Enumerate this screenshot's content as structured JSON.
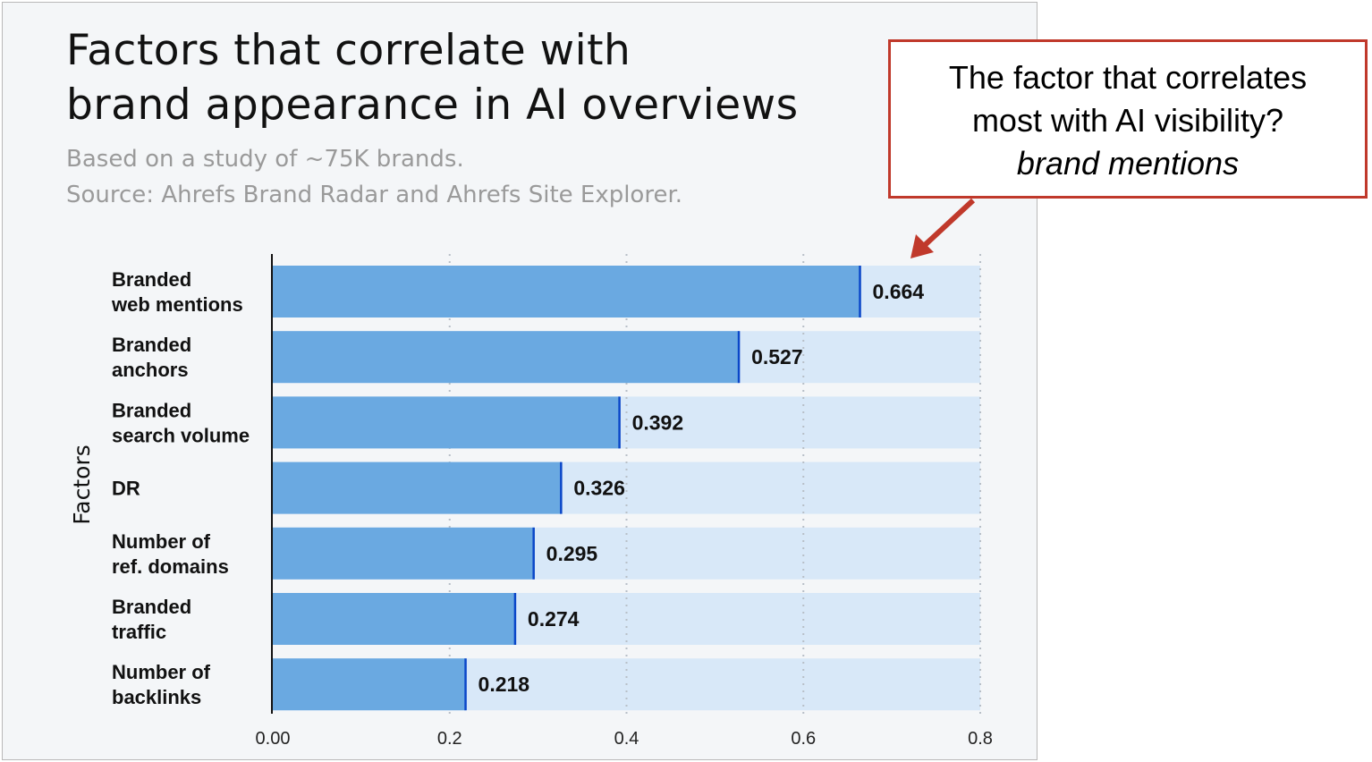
{
  "header": {
    "title_line1": "Factors that correlate with",
    "title_line2": "brand appearance in AI overviews",
    "subtitle_line1": "Based on a study of ~75K brands.",
    "subtitle_line2": "Source: Ahrefs Brand Radar and Ahrefs Site Explorer."
  },
  "callout": {
    "line1": "The factor that correlates",
    "line2": "most with AI visibility?",
    "line3": "brand mentions"
  },
  "colors": {
    "bar": "#6aa9e1",
    "track": "#d8e8f8",
    "marker": "#0a46c8",
    "callout_border": "#c0392b"
  },
  "chart_data": {
    "type": "bar",
    "orientation": "horizontal",
    "categories": [
      [
        "Branded",
        "web mentions"
      ],
      [
        "Branded",
        "anchors"
      ],
      [
        "Branded",
        "search volume"
      ],
      [
        "DR"
      ],
      [
        "Number of",
        "ref. domains"
      ],
      [
        "Branded",
        "traffic"
      ],
      [
        "Number of",
        "backlinks"
      ]
    ],
    "values": [
      0.664,
      0.527,
      0.392,
      0.326,
      0.295,
      0.274,
      0.218
    ],
    "value_labels": [
      "0.664",
      "0.527",
      "0.392",
      "0.326",
      "0.295",
      "0.274",
      "0.218"
    ],
    "xlim": [
      0,
      0.8
    ],
    "xticks": [
      0,
      0.2,
      0.4,
      0.6,
      0.8
    ],
    "xtick_labels": [
      "0.00",
      "0.2",
      "0.4",
      "0.6",
      "0.8"
    ],
    "ylabel": "Factors",
    "xlabel": "",
    "grid": "vertical dotted"
  }
}
